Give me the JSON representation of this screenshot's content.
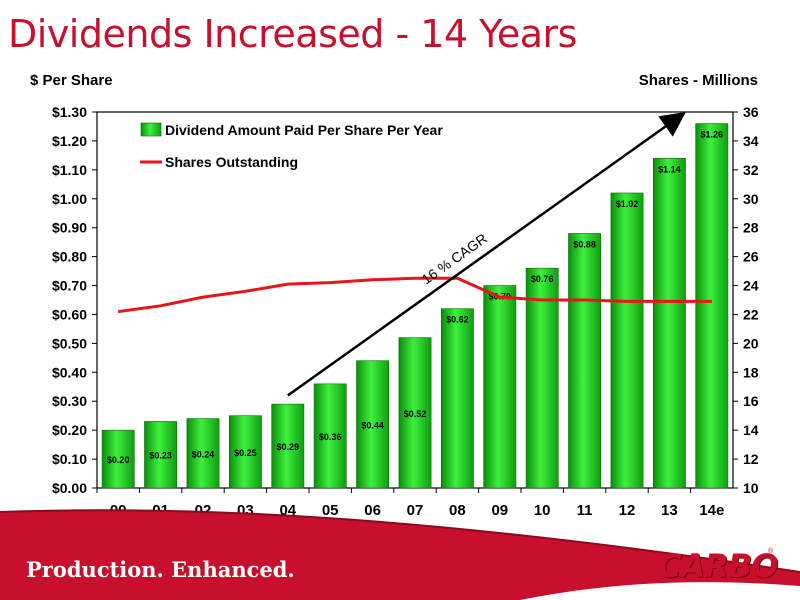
{
  "title": "Dividends Increased - 14 Years",
  "footer": {
    "tagline": "Production. Enhanced.",
    "logo_text": "CARBO",
    "logo_mark": "®"
  },
  "colors": {
    "brand_red": "#c8102e",
    "bar_green": "#22cc22",
    "line_red": "#e8141c",
    "arrow": "#000000"
  },
  "chart_data": {
    "type": "bar",
    "ylabel": "$ Per Share",
    "y2label": "Shares - Millions",
    "categories": [
      "00",
      "01",
      "02",
      "03",
      "04",
      "05",
      "06",
      "07",
      "08",
      "09",
      "10",
      "11",
      "12",
      "13",
      "14e"
    ],
    "ylim": [
      0,
      1.3
    ],
    "y_ticks": [
      "$0.00",
      "$0.10",
      "$0.20",
      "$0.30",
      "$0.40",
      "$0.50",
      "$0.60",
      "$0.70",
      "$0.80",
      "$0.90",
      "$1.00",
      "$1.10",
      "$1.20",
      "$1.30"
    ],
    "y2lim": [
      10,
      36
    ],
    "y2_ticks": [
      "10",
      "12",
      "14",
      "16",
      "18",
      "20",
      "22",
      "24",
      "26",
      "28",
      "30",
      "32",
      "34",
      "36"
    ],
    "series": [
      {
        "name": "Dividend Amount Paid Per Share Per Year",
        "type": "bar",
        "axis": "left",
        "values": [
          0.2,
          0.23,
          0.24,
          0.25,
          0.29,
          0.36,
          0.44,
          0.52,
          0.62,
          0.7,
          0.76,
          0.88,
          1.02,
          1.14,
          1.26
        ],
        "labels": [
          "$0.20",
          "$0.23",
          "$0.24",
          "$0.25",
          "$0.29",
          "$0.36",
          "$0.44",
          "$0.52",
          "$0.62",
          "$0.70",
          "$0.76",
          "$0.88",
          "$1.02",
          "$1.14",
          "$1.26"
        ]
      },
      {
        "name": "Shares Outstanding",
        "type": "line",
        "axis": "right",
        "values": [
          22.2,
          22.6,
          23.2,
          23.6,
          24.1,
          24.2,
          24.4,
          24.5,
          24.5,
          23.2,
          23.0,
          23.0,
          22.9,
          22.9,
          22.9
        ]
      }
    ],
    "annotations": [
      {
        "text": "16 % CAGR",
        "type": "arrow",
        "from_category": "04",
        "from_value": 0.32,
        "to_category": "14e",
        "to_value": 1.29
      }
    ],
    "legend": "top-left",
    "grid": false
  }
}
